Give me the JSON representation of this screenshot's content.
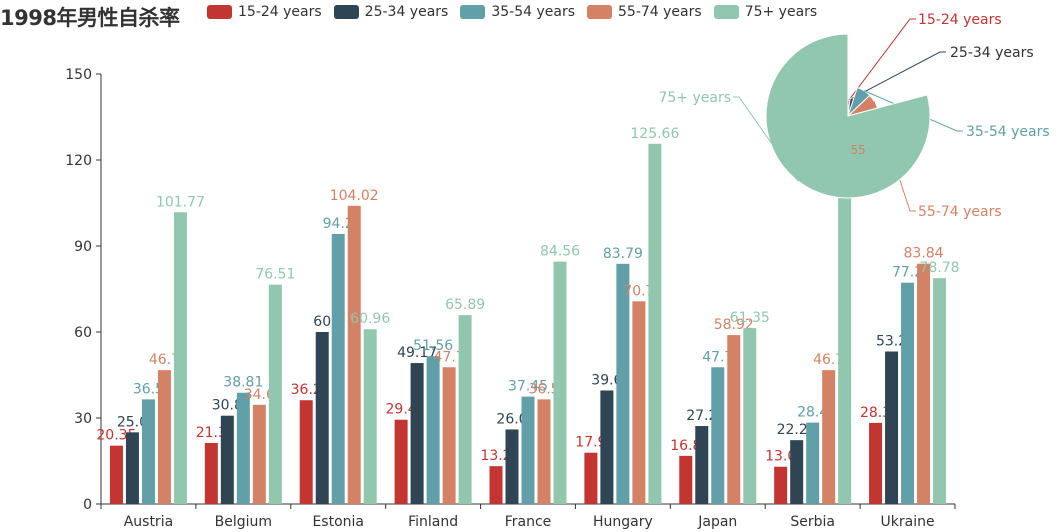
{
  "title": "1998年男性自杀率",
  "legend": [
    {
      "label": "15-24 years",
      "color": "#c23531"
    },
    {
      "label": "25-34 years",
      "color": "#2f4554"
    },
    {
      "label": "35-54 years",
      "color": "#61a0a8"
    },
    {
      "label": "55-74 years",
      "color": "#d48265"
    },
    {
      "label": "75+ years",
      "color": "#91c7ae"
    }
  ],
  "chart_data": [
    {
      "type": "bar",
      "categories": [
        "Austria",
        "Belgium",
        "Estonia",
        "Finland",
        "France",
        "Hungary",
        "Japan",
        "Serbia",
        "Ukraine"
      ],
      "ylim": [
        0,
        150
      ],
      "yticks": [
        0,
        30,
        60,
        90,
        120,
        150
      ],
      "series": [
        {
          "name": "15-24 years",
          "color": "#c23531",
          "values": [
            20.35,
            21.3,
            36.2,
            29.4,
            13.2,
            17.9,
            16.8,
            13.0,
            28.3
          ],
          "labels": [
            "20.35",
            "21.3",
            "36.2",
            "29.4",
            "13.2",
            "17.9",
            "16.8",
            "13.0",
            "28.3"
          ]
        },
        {
          "name": "25-34 years",
          "color": "#2f4554",
          "values": [
            25.0,
            30.8,
            60,
            49.17,
            26.0,
            39.6,
            27.2,
            22.27,
            53.2
          ],
          "labels": [
            "25.0",
            "30.8",
            "60",
            "49.17",
            "26.0",
            "39.6",
            "27.2",
            "22.27",
            "53.2"
          ]
        },
        {
          "name": "35-54 years",
          "color": "#61a0a8",
          "values": [
            36.5,
            38.81,
            94.2,
            51.56,
            37.45,
            83.79,
            47.7,
            28.4,
            77.2
          ],
          "labels": [
            "36.5",
            "38.81",
            "94.2",
            "51.56",
            "37.45",
            "83.79",
            "47.7",
            "28.4",
            "77.2"
          ]
        },
        {
          "name": "55-74 years",
          "color": "#d48265",
          "values": [
            46.7,
            34.6,
            104.02,
            47.7,
            36.5,
            70.7,
            58.92,
            46.7,
            83.84
          ],
          "labels": [
            "46.7",
            "34.6",
            "104.02",
            "47.7",
            "36.5",
            "70.7",
            "58.92",
            "46.7",
            "83.84"
          ]
        },
        {
          "name": "75+ years",
          "color": "#91c7ae",
          "values": [
            101.77,
            76.51,
            60.96,
            65.89,
            84.56,
            125.66,
            61.35,
            119.0,
            78.78
          ],
          "labels": [
            "101.77",
            "76.51",
            "60.96",
            "65.89",
            "84.56",
            "125.66",
            "61.35",
            "",
            "78.78"
          ]
        }
      ]
    },
    {
      "type": "pie",
      "slices": [
        {
          "name": "15-24 years",
          "value": 7,
          "color": "#c23531"
        },
        {
          "name": "25-34 years",
          "value": 12,
          "color": "#2f4554"
        },
        {
          "name": "35-54 years",
          "value": 30,
          "color": "#61a0a8"
        },
        {
          "name": "55-74 years",
          "value": 30,
          "color": "#d48265"
        },
        {
          "name": "75+ years",
          "value": 300,
          "color": "#91c7ae"
        }
      ],
      "label": "55"
    }
  ]
}
